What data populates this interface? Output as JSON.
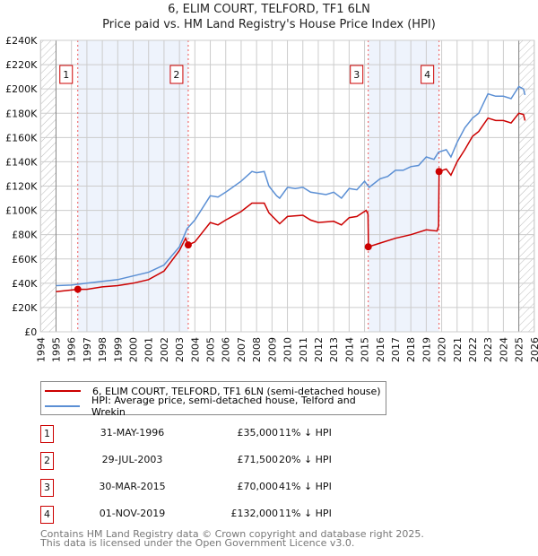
{
  "chart_data": {
    "type": "line",
    "title": "6, ELIM COURT, TELFORD, TF1 6LN",
    "subtitle": "Price paid vs. HM Land Registry's House Price Index (HPI)",
    "xlim": [
      1994,
      2026
    ],
    "ylim": [
      0,
      240000
    ],
    "x_ticks": [
      "1994",
      "1995",
      "1996",
      "1997",
      "1998",
      "1999",
      "2000",
      "2001",
      "2002",
      "2003",
      "2004",
      "2005",
      "2006",
      "2007",
      "2008",
      "2009",
      "2010",
      "2011",
      "2012",
      "2013",
      "2014",
      "2015",
      "2016",
      "2017",
      "2018",
      "2019",
      "2020",
      "2021",
      "2022",
      "2023",
      "2024",
      "2025",
      "2026"
    ],
    "y_ticks": [
      {
        "v": 0,
        "label": "£0"
      },
      {
        "v": 20000,
        "label": "£20K"
      },
      {
        "v": 40000,
        "label": "£40K"
      },
      {
        "v": 60000,
        "label": "£60K"
      },
      {
        "v": 80000,
        "label": "£80K"
      },
      {
        "v": 100000,
        "label": "£100K"
      },
      {
        "v": 120000,
        "label": "£120K"
      },
      {
        "v": 140000,
        "label": "£140K"
      },
      {
        "v": 160000,
        "label": "£160K"
      },
      {
        "v": 180000,
        "label": "£180K"
      },
      {
        "v": 200000,
        "label": "£200K"
      },
      {
        "v": 220000,
        "label": "£220K"
      },
      {
        "v": 240000,
        "label": "£240K"
      }
    ],
    "grid": true,
    "legend_placement": "below",
    "series": [
      {
        "name": "6, ELIM COURT, TELFORD, TF1 6LN (semi-detached house)",
        "color": "#cc0000",
        "x": [
          1995,
          1996.4,
          1997,
          1998,
          1999,
          2000,
          2001,
          2002,
          2003,
          2003.4,
          2003.57,
          2004,
          2005,
          2005.5,
          2006,
          2007,
          2007.7,
          2008.5,
          2008.8,
          2009.5,
          2010,
          2011,
          2011.5,
          2012,
          2013,
          2013.5,
          2014,
          2014.5,
          2015.1,
          2015.22,
          2015.25,
          2016,
          2017,
          2018,
          2019,
          2019.7,
          2019.8,
          2019.83,
          2020.3,
          2020.6,
          2021,
          2021.5,
          2022,
          2022.4,
          2023,
          2023.5,
          2024,
          2024.5,
          2025,
          2025.3,
          2025.4
        ],
        "y": [
          33000,
          35000,
          35000,
          37000,
          38000,
          40000,
          43000,
          50000,
          67000,
          77000,
          71500,
          74000,
          90000,
          88000,
          92000,
          99000,
          106000,
          106000,
          98000,
          89000,
          95000,
          96000,
          92000,
          90000,
          91000,
          88000,
          94000,
          95000,
          100000,
          97000,
          70000,
          73000,
          77000,
          80000,
          84000,
          83000,
          87000,
          132000,
          134000,
          129000,
          140000,
          150000,
          161000,
          165000,
          176000,
          174000,
          174000,
          172000,
          180000,
          179000,
          174000
        ]
      },
      {
        "name": "HPI: Average price, semi-detached house, Telford and Wrekin",
        "color": "#5b8fd4",
        "x": [
          1995,
          1996,
          1997,
          1998,
          1999,
          2000,
          2001,
          2002,
          2003,
          2003.5,
          2004,
          2005,
          2005.5,
          2006,
          2007,
          2007.7,
          2008,
          2008.5,
          2008.8,
          2009.3,
          2009.5,
          2010,
          2010.5,
          2011,
          2011.5,
          2012,
          2012.5,
          2013,
          2013.5,
          2014,
          2014.5,
          2015,
          2015.3,
          2016,
          2016.5,
          2017,
          2017.5,
          2018,
          2018.5,
          2019,
          2019.5,
          2019.8,
          2020.3,
          2020.6,
          2021,
          2021.5,
          2022,
          2022.4,
          2023,
          2023.5,
          2024,
          2024.5,
          2025,
          2025.3,
          2025.4
        ],
        "y": [
          38000,
          38500,
          40000,
          41500,
          43000,
          46000,
          49000,
          55000,
          70000,
          85000,
          92000,
          112000,
          111000,
          115000,
          124000,
          132000,
          131000,
          132000,
          120000,
          112000,
          110000,
          119000,
          118000,
          119000,
          115000,
          114000,
          113000,
          115000,
          110000,
          118000,
          117000,
          124000,
          119000,
          126000,
          128000,
          133000,
          133000,
          136000,
          137000,
          144000,
          142000,
          148000,
          150000,
          144000,
          156000,
          168000,
          176000,
          180000,
          196000,
          194000,
          194000,
          192000,
          202000,
          200000,
          195000
        ]
      }
    ],
    "sales": [
      {
        "label": "1",
        "x": 1996.41,
        "y": 35000,
        "date": "31-MAY-1996",
        "price": "£35,000",
        "hpi": "11% ↓ HPI"
      },
      {
        "label": "2",
        "x": 2003.57,
        "y": 71500,
        "date": "29-JUL-2003",
        "price": "£71,500",
        "hpi": "20% ↓ HPI"
      },
      {
        "label": "3",
        "x": 2015.24,
        "y": 70000,
        "date": "30-MAR-2015",
        "price": "£70,000",
        "hpi": "41% ↓ HPI"
      },
      {
        "label": "4",
        "x": 2019.83,
        "y": 132000,
        "date": "01-NOV-2019",
        "price": "£132,000",
        "hpi": "11% ↓ HPI"
      }
    ]
  },
  "footer": [
    "Contains HM Land Registry data © Crown copyright and database right 2025.",
    "This data is licensed under the Open Government Licence v3.0."
  ]
}
